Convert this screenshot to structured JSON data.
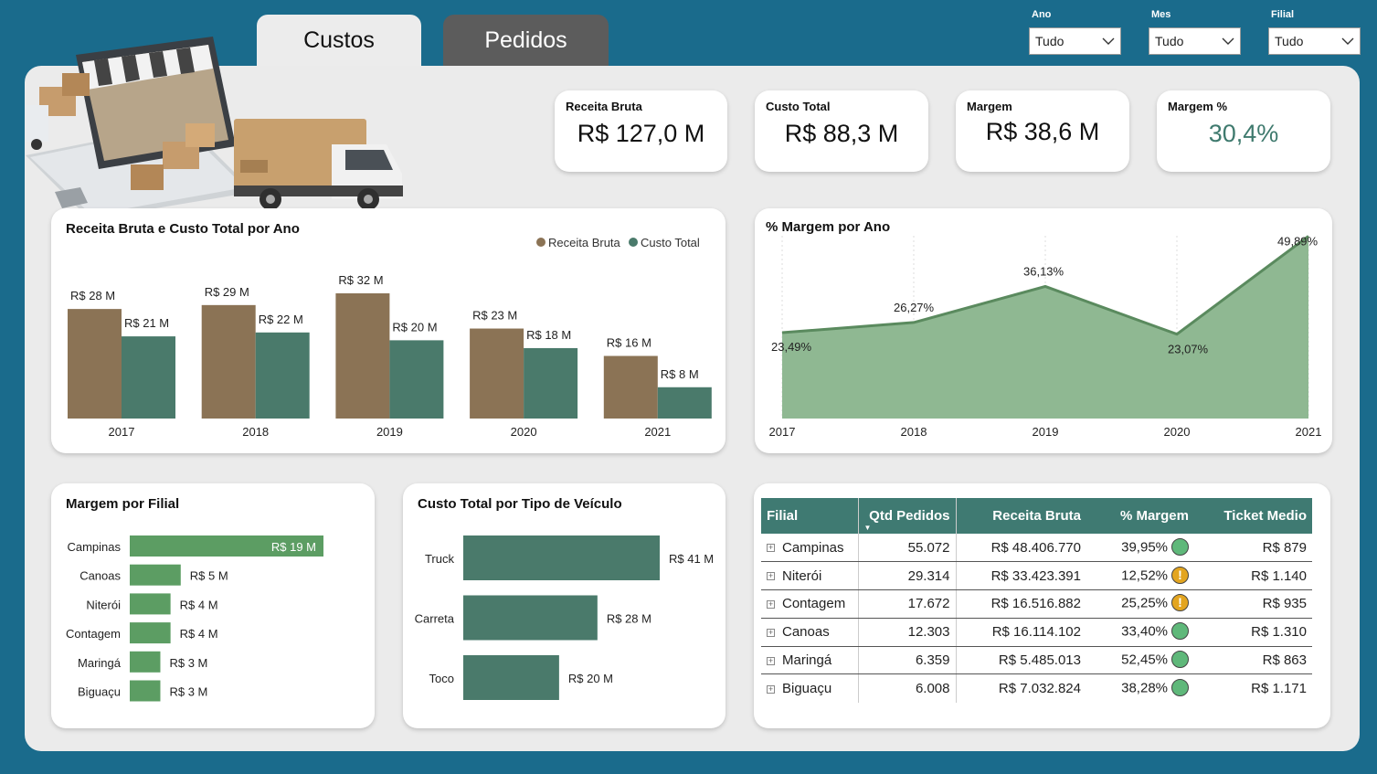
{
  "tabs": {
    "custos": "Custos",
    "pedidos": "Pedidos"
  },
  "filters": [
    {
      "label": "Ano",
      "value": "Tudo"
    },
    {
      "label": "Mes",
      "value": "Tudo"
    },
    {
      "label": "Filial",
      "value": "Tudo"
    }
  ],
  "kpis": {
    "receita": {
      "label": "Receita Bruta",
      "value": "R$ 127,0 M"
    },
    "custo": {
      "label": "Custo Total",
      "value": "R$ 88,3 M"
    },
    "margem": {
      "label": "Margem",
      "value": "R$ 38,6 M"
    },
    "margem_pct": {
      "label": "Margem %",
      "value": "30,4%",
      "color": "#3f7a6e"
    }
  },
  "colors": {
    "receita": "#8b7355",
    "custo": "#4a7a6b",
    "area_fill": "#8fb892",
    "area_line": "#5a8a5e",
    "bar_green": "#5c9d63",
    "bar_teal": "#4a7a6b"
  },
  "icons": {
    "hero": "ecommerce-delivery-illustration",
    "ok": "green-circle-icon",
    "warn": "warning-icon",
    "expand": "expand-plus-icon",
    "dropdown": "chevron-down-icon"
  },
  "chart_data": [
    {
      "type": "bar",
      "title": "Receita Bruta e Custo Total por Ano",
      "categories": [
        "2017",
        "2018",
        "2019",
        "2020",
        "2021"
      ],
      "series": [
        {
          "name": "Receita Bruta",
          "values": [
            28,
            29,
            32,
            23,
            16
          ],
          "labels": [
            "R$ 28 M",
            "R$ 29 M",
            "R$ 32 M",
            "R$ 23 M",
            "R$ 16 M"
          ]
        },
        {
          "name": "Custo Total",
          "values": [
            21,
            22,
            20,
            18,
            8
          ],
          "labels": [
            "R$ 21 M",
            "R$ 22 M",
            "R$ 20 M",
            "R$ 18 M",
            "R$ 8 M"
          ]
        }
      ],
      "legend": "top-right",
      "ylim": [
        0,
        32
      ]
    },
    {
      "type": "area",
      "title": "% Margem por Ano",
      "x": [
        "2017",
        "2018",
        "2019",
        "2020",
        "2021"
      ],
      "values": [
        23.49,
        26.27,
        36.13,
        23.07,
        49.89
      ],
      "labels": [
        "23,49%",
        "26,27%",
        "36,13%",
        "23,07%",
        "49,89%"
      ],
      "ylim": [
        0,
        50
      ]
    },
    {
      "type": "bar",
      "orientation": "horizontal",
      "title": "Margem por Filial",
      "categories": [
        "Campinas",
        "Canoas",
        "Niterói",
        "Contagem",
        "Maringá",
        "Biguaçu"
      ],
      "values": [
        19,
        5,
        4,
        4,
        3,
        3
      ],
      "labels": [
        "R$ 19 M",
        "R$ 5 M",
        "R$ 4 M",
        "R$ 4 M",
        "R$ 3 M",
        "R$ 3 M"
      ]
    },
    {
      "type": "bar",
      "orientation": "horizontal",
      "title": "Custo Total por Tipo  de Veículo",
      "categories": [
        "Truck",
        "Carreta",
        "Toco"
      ],
      "values": [
        41,
        28,
        20
      ],
      "labels": [
        "R$ 41 M",
        "R$ 28 M",
        "R$ 20 M"
      ]
    }
  ],
  "table": {
    "headers": [
      "Filial",
      "Qtd Pedidos",
      "Receita Bruta",
      "% Margem",
      "Ticket Medio"
    ],
    "rows": [
      {
        "filial": "Campinas",
        "qtd": "55.072",
        "receita": "R$ 48.406.770",
        "margem": "39,95%",
        "status": "ok",
        "ticket": "R$ 879"
      },
      {
        "filial": "Niterói",
        "qtd": "29.314",
        "receita": "R$ 33.423.391",
        "margem": "12,52%",
        "status": "warn",
        "ticket": "R$ 1.140"
      },
      {
        "filial": "Contagem",
        "qtd": "17.672",
        "receita": "R$ 16.516.882",
        "margem": "25,25%",
        "status": "warn",
        "ticket": "R$ 935"
      },
      {
        "filial": "Canoas",
        "qtd": "12.303",
        "receita": "R$ 16.114.102",
        "margem": "33,40%",
        "status": "ok",
        "ticket": "R$ 1.310"
      },
      {
        "filial": "Maringá",
        "qtd": "6.359",
        "receita": "R$ 5.485.013",
        "margem": "52,45%",
        "status": "ok",
        "ticket": "R$ 863"
      },
      {
        "filial": "Biguaçu",
        "qtd": "6.008",
        "receita": "R$ 7.032.824",
        "margem": "38,28%",
        "status": "ok",
        "ticket": "R$ 1.171"
      }
    ]
  }
}
